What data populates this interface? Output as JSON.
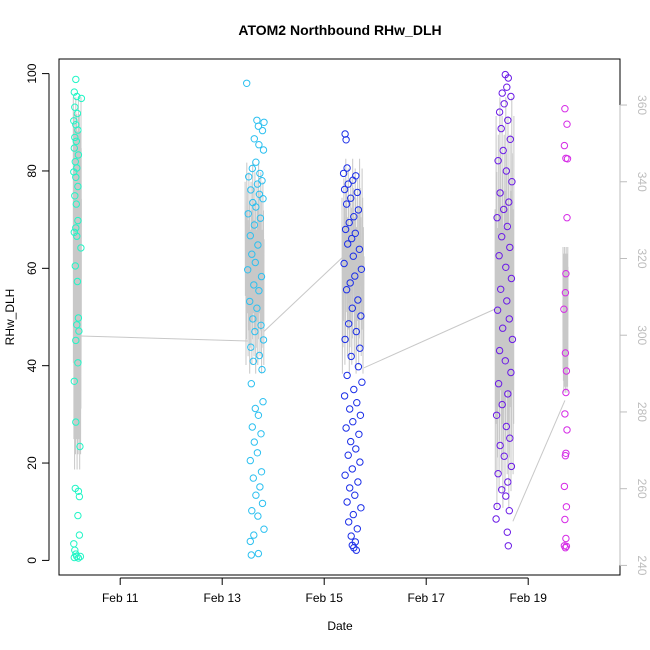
{
  "chart_data": {
    "type": "scatter",
    "title": "ATOM2 Northbound RHw_DLH",
    "xlabel": "Date",
    "ylabel": "RHw_DLH",
    "x_range_days": [
      9.8,
      20.8
    ],
    "ylim": [
      -3,
      103
    ],
    "y_ticks": [
      0,
      20,
      40,
      60,
      80,
      100
    ],
    "x_ticks": [
      {
        "day": 11,
        "label": "Feb 11"
      },
      {
        "day": 13,
        "label": "Feb 13"
      },
      {
        "day": 15,
        "label": "Feb 15"
      },
      {
        "day": 17,
        "label": "Feb 17"
      },
      {
        "day": 19,
        "label": "Feb 19"
      }
    ],
    "secondary_axis": {
      "ylim": [
        237.5,
        372
      ],
      "ticks": [
        240,
        260,
        280,
        300,
        320,
        340,
        360
      ],
      "color": "#bdbdbd"
    },
    "grid": false,
    "series": [
      {
        "color": "#22f5c6",
        "x_window": [
          10.08,
          10.26
        ],
        "points": [
          [
            10.13,
            98.8
          ],
          [
            10.1,
            96.2
          ],
          [
            10.15,
            95.3
          ],
          [
            10.24,
            94.9
          ],
          [
            10.11,
            93.1
          ],
          [
            10.16,
            91.8
          ],
          [
            10.09,
            90.3
          ],
          [
            10.13,
            89.5
          ],
          [
            10.17,
            88.4
          ],
          [
            10.11,
            86.9
          ],
          [
            10.14,
            86.1
          ],
          [
            10.1,
            84.7
          ],
          [
            10.18,
            83.3
          ],
          [
            10.12,
            81.9
          ],
          [
            10.15,
            80.6
          ],
          [
            10.09,
            79.8
          ],
          [
            10.13,
            78.7
          ],
          [
            10.17,
            76.8
          ],
          [
            10.11,
            74.9
          ],
          [
            10.14,
            73.2
          ],
          [
            10.17,
            69.8
          ],
          [
            10.13,
            68.3
          ],
          [
            10.1,
            67.4
          ],
          [
            10.15,
            66.6
          ],
          [
            10.23,
            64.2
          ],
          [
            10.12,
            60.5
          ],
          [
            10.16,
            57.3
          ],
          [
            10.18,
            49.8
          ],
          [
            10.15,
            48.4
          ],
          [
            10.19,
            47.1
          ],
          [
            10.13,
            45.2
          ],
          [
            10.17,
            40.6
          ],
          [
            10.1,
            36.8
          ],
          [
            10.13,
            28.4
          ],
          [
            10.21,
            23.4
          ],
          [
            10.12,
            14.8
          ],
          [
            10.18,
            14.2
          ],
          [
            10.2,
            13.1
          ],
          [
            10.17,
            9.2
          ],
          [
            10.2,
            5.2
          ],
          [
            10.09,
            3.4
          ],
          [
            10.11,
            2.1
          ],
          [
            10.13,
            1.3
          ],
          [
            10.15,
            0.8
          ],
          [
            10.18,
            0.5
          ],
          [
            10.1,
            0.6
          ],
          [
            10.22,
            0.8
          ]
        ]
      },
      {
        "color": "#2cc0f0",
        "x_window": [
          13.45,
          13.82
        ],
        "points": [
          [
            13.48,
            98.0
          ],
          [
            13.68,
            90.4
          ],
          [
            13.82,
            90.0
          ],
          [
            13.71,
            89.2
          ],
          [
            13.79,
            88.3
          ],
          [
            13.63,
            86.6
          ],
          [
            13.72,
            85.4
          ],
          [
            13.81,
            84.3
          ],
          [
            13.66,
            81.8
          ],
          [
            13.59,
            80.5
          ],
          [
            13.74,
            79.5
          ],
          [
            13.52,
            78.8
          ],
          [
            13.78,
            78.0
          ],
          [
            13.69,
            77.3
          ],
          [
            13.56,
            76.1
          ],
          [
            13.73,
            75.2
          ],
          [
            13.8,
            74.3
          ],
          [
            13.6,
            73.5
          ],
          [
            13.66,
            72.6
          ],
          [
            13.51,
            71.2
          ],
          [
            13.75,
            70.3
          ],
          [
            13.63,
            68.9
          ],
          [
            13.55,
            66.7
          ],
          [
            13.7,
            64.8
          ],
          [
            13.58,
            62.9
          ],
          [
            13.65,
            61.2
          ],
          [
            13.5,
            59.7
          ],
          [
            13.77,
            58.3
          ],
          [
            13.62,
            56.6
          ],
          [
            13.72,
            55.4
          ],
          [
            13.54,
            53.2
          ],
          [
            13.68,
            51.8
          ],
          [
            13.6,
            49.6
          ],
          [
            13.76,
            48.3
          ],
          [
            13.64,
            47.0
          ],
          [
            13.81,
            45.3
          ],
          [
            13.56,
            43.8
          ],
          [
            13.73,
            42.1
          ],
          [
            13.61,
            40.9
          ],
          [
            13.78,
            39.2
          ],
          [
            13.57,
            36.3
          ],
          [
            13.8,
            32.6
          ],
          [
            13.65,
            31.2
          ],
          [
            13.71,
            29.8
          ],
          [
            13.59,
            27.4
          ],
          [
            13.76,
            26.0
          ],
          [
            13.63,
            24.3
          ],
          [
            13.69,
            22.1
          ],
          [
            13.55,
            20.5
          ],
          [
            13.77,
            18.2
          ],
          [
            13.61,
            16.9
          ],
          [
            13.74,
            15.1
          ],
          [
            13.66,
            13.4
          ],
          [
            13.79,
            11.7
          ],
          [
            13.58,
            10.2
          ],
          [
            13.7,
            9.1
          ],
          [
            13.82,
            6.4
          ],
          [
            13.62,
            5.2
          ],
          [
            13.55,
            3.9
          ],
          [
            13.71,
            1.4
          ],
          [
            13.57,
            1.1
          ]
        ]
      },
      {
        "color": "#1b2ee8",
        "x_window": [
          15.35,
          15.78
        ],
        "points": [
          [
            15.41,
            87.6
          ],
          [
            15.43,
            86.4
          ],
          [
            15.45,
            80.6
          ],
          [
            15.38,
            79.5
          ],
          [
            15.62,
            79.0
          ],
          [
            15.56,
            78.1
          ],
          [
            15.47,
            77.3
          ],
          [
            15.4,
            76.2
          ],
          [
            15.65,
            75.6
          ],
          [
            15.52,
            74.4
          ],
          [
            15.44,
            73.2
          ],
          [
            15.67,
            72.0
          ],
          [
            15.58,
            70.6
          ],
          [
            15.49,
            69.4
          ],
          [
            15.42,
            68.0
          ],
          [
            15.61,
            67.2
          ],
          [
            15.54,
            66.1
          ],
          [
            15.46,
            65.0
          ],
          [
            15.69,
            63.9
          ],
          [
            15.57,
            62.5
          ],
          [
            15.39,
            61.0
          ],
          [
            15.73,
            59.8
          ],
          [
            15.6,
            58.4
          ],
          [
            15.51,
            57.0
          ],
          [
            15.44,
            55.6
          ],
          [
            15.66,
            53.5
          ],
          [
            15.55,
            51.8
          ],
          [
            15.72,
            50.2
          ],
          [
            15.48,
            48.6
          ],
          [
            15.63,
            47.0
          ],
          [
            15.41,
            45.4
          ],
          [
            15.7,
            43.6
          ],
          [
            15.53,
            41.9
          ],
          [
            15.67,
            39.8
          ],
          [
            15.45,
            38.0
          ],
          [
            15.74,
            36.6
          ],
          [
            15.58,
            35.1
          ],
          [
            15.4,
            33.8
          ],
          [
            15.64,
            32.4
          ],
          [
            15.5,
            31.1
          ],
          [
            15.71,
            29.8
          ],
          [
            15.56,
            28.5
          ],
          [
            15.43,
            27.2
          ],
          [
            15.68,
            25.9
          ],
          [
            15.52,
            24.4
          ],
          [
            15.62,
            22.9
          ],
          [
            15.47,
            21.6
          ],
          [
            15.7,
            20.2
          ],
          [
            15.55,
            18.8
          ],
          [
            15.41,
            17.5
          ],
          [
            15.66,
            16.1
          ],
          [
            15.5,
            14.9
          ],
          [
            15.6,
            13.4
          ],
          [
            15.45,
            12.0
          ],
          [
            15.72,
            10.8
          ],
          [
            15.57,
            9.4
          ],
          [
            15.48,
            7.9
          ],
          [
            15.65,
            6.5
          ],
          [
            15.53,
            5.0
          ],
          [
            15.61,
            3.8
          ],
          [
            15.58,
            2.6
          ],
          [
            15.63,
            2.1
          ],
          [
            15.55,
            3.1
          ]
        ]
      },
      {
        "color": "#6a1ae6",
        "x_window": [
          18.35,
          18.72
        ],
        "points": [
          [
            18.55,
            99.8
          ],
          [
            18.61,
            99.1
          ],
          [
            18.58,
            97.2
          ],
          [
            18.49,
            96.0
          ],
          [
            18.66,
            95.3
          ],
          [
            18.53,
            93.8
          ],
          [
            18.44,
            92.1
          ],
          [
            18.6,
            90.4
          ],
          [
            18.47,
            88.7
          ],
          [
            18.65,
            86.5
          ],
          [
            18.51,
            84.2
          ],
          [
            18.41,
            82.1
          ],
          [
            18.57,
            80.0
          ],
          [
            18.68,
            77.8
          ],
          [
            18.45,
            75.5
          ],
          [
            18.62,
            73.6
          ],
          [
            18.52,
            72.1
          ],
          [
            18.39,
            70.4
          ],
          [
            18.59,
            68.6
          ],
          [
            18.48,
            66.5
          ],
          [
            18.64,
            64.3
          ],
          [
            18.43,
            62.6
          ],
          [
            18.56,
            60.2
          ],
          [
            18.67,
            57.9
          ],
          [
            18.46,
            55.7
          ],
          [
            18.58,
            53.3
          ],
          [
            18.4,
            51.4
          ],
          [
            18.63,
            49.6
          ],
          [
            18.5,
            47.7
          ],
          [
            18.69,
            45.4
          ],
          [
            18.44,
            43.1
          ],
          [
            18.55,
            41.0
          ],
          [
            18.66,
            38.6
          ],
          [
            18.42,
            36.3
          ],
          [
            18.6,
            34.2
          ],
          [
            18.49,
            32.0
          ],
          [
            18.38,
            29.8
          ],
          [
            18.57,
            27.5
          ],
          [
            18.64,
            25.1
          ],
          [
            18.45,
            23.6
          ],
          [
            18.53,
            21.4
          ],
          [
            18.67,
            19.3
          ],
          [
            18.41,
            17.8
          ],
          [
            18.6,
            16.1
          ],
          [
            18.48,
            14.5
          ],
          [
            18.56,
            13.2
          ],
          [
            18.39,
            11.1
          ],
          [
            18.63,
            10.2
          ],
          [
            18.37,
            8.5
          ],
          [
            18.59,
            5.8
          ],
          [
            18.61,
            3.0
          ]
        ]
      },
      {
        "color": "#d52ae6",
        "x_window": [
          19.68,
          19.82
        ],
        "points": [
          [
            19.72,
            92.8
          ],
          [
            19.76,
            89.6
          ],
          [
            19.71,
            85.2
          ],
          [
            19.74,
            82.6
          ],
          [
            19.77,
            82.5
          ],
          [
            19.76,
            70.4
          ],
          [
            19.74,
            58.9
          ],
          [
            19.73,
            55.0
          ],
          [
            19.7,
            51.6
          ],
          [
            19.73,
            42.6
          ],
          [
            19.75,
            38.9
          ],
          [
            19.74,
            34.5
          ],
          [
            19.72,
            30.1
          ],
          [
            19.76,
            26.8
          ],
          [
            19.74,
            22.0
          ],
          [
            19.73,
            21.5
          ],
          [
            19.71,
            15.2
          ],
          [
            19.75,
            11.0
          ],
          [
            19.72,
            8.4
          ],
          [
            19.74,
            4.5
          ],
          [
            19.71,
            3.0
          ],
          [
            19.73,
            2.6
          ],
          [
            19.75,
            2.9
          ]
        ]
      }
    ],
    "trace": {
      "color": "#c8c8c8",
      "note": "secondary-axis line trace",
      "segments": [
        {
          "x": [
            10.08,
            10.24
          ],
          "low": 265,
          "high": 362
        },
        {
          "x": [
            13.45,
            13.82
          ],
          "low": 290,
          "high": 345
        },
        {
          "x": [
            15.35,
            15.78
          ],
          "low": 290,
          "high": 346
        },
        {
          "x": [
            18.35,
            18.72
          ],
          "low": 255,
          "high": 362
        },
        {
          "x": [
            19.68,
            19.78
          ],
          "low": 285,
          "high": 323
        }
      ],
      "connectors": [
        [
          [
            10.22,
            299.8
          ],
          [
            13.5,
            298.5
          ]
        ],
        [
          [
            13.82,
            301.0
          ],
          [
            15.4,
            320.8
          ]
        ],
        [
          [
            15.78,
            291.5
          ],
          [
            18.38,
            307.0
          ]
        ],
        [
          [
            18.7,
            251.5
          ],
          [
            19.72,
            283.0
          ]
        ]
      ]
    }
  }
}
